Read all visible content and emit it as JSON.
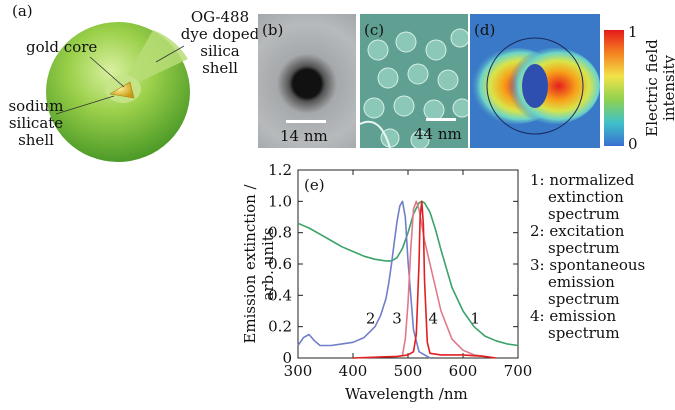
{
  "panel_a": {
    "tag": "(a)",
    "gold_core": "gold core",
    "shell_label": [
      "OG-488",
      "dye doped",
      "silica",
      "shell"
    ],
    "sodium_label": [
      "sodium",
      "silicate",
      "shell"
    ],
    "colors": {
      "shell": "#8cc63f",
      "core": "#e0c020"
    }
  },
  "panel_b": {
    "tag": "(b)",
    "scale": "14 nm"
  },
  "panel_c": {
    "tag": "(c)",
    "scale": "44 nm"
  },
  "panel_d": {
    "tag": "(d)"
  },
  "colorbar": {
    "max": "1",
    "min": "0",
    "label": [
      "Electric field",
      "intensity"
    ]
  },
  "legend": [
    {
      "lines": [
        "1: normalized",
        "extinction",
        "spectrum"
      ]
    },
    {
      "lines": [
        "2: excitation",
        "spectrum"
      ]
    },
    {
      "lines": [
        "3: spontaneous",
        "emission",
        "spectrum"
      ]
    },
    {
      "lines": [
        "4: emission",
        "spectrum"
      ]
    }
  ],
  "chart_data": {
    "type": "line",
    "panel_tag": "(e)",
    "xlabel": "Wavelength /nm",
    "ylabel": [
      "Emission extinction /",
      "arb. units"
    ],
    "xlim": [
      300,
      700
    ],
    "ylim": [
      0,
      1.2
    ],
    "xticks": [
      300,
      400,
      500,
      600,
      700
    ],
    "yticks": [
      0,
      0.2,
      0.4,
      0.6,
      0.8,
      1.0,
      1.2
    ],
    "ytick_labels": [
      "0",
      "0.2",
      "0.4",
      "0.6",
      "0.8",
      "1.0",
      "1.2"
    ],
    "series": [
      {
        "id": "1",
        "color": "#3aa36a",
        "x": [
          300,
          320,
          340,
          360,
          380,
          400,
          420,
          440,
          460,
          470,
          480,
          490,
          500,
          510,
          520,
          525,
          530,
          540,
          550,
          560,
          580,
          600,
          620,
          640,
          660,
          680,
          700
        ],
        "y": [
          0.86,
          0.83,
          0.79,
          0.75,
          0.71,
          0.68,
          0.65,
          0.63,
          0.62,
          0.62,
          0.64,
          0.7,
          0.8,
          0.92,
          0.99,
          1.0,
          0.99,
          0.93,
          0.82,
          0.69,
          0.45,
          0.3,
          0.2,
          0.14,
          0.11,
          0.09,
          0.08
        ]
      },
      {
        "id": "2",
        "color": "#7080c8",
        "x": [
          300,
          310,
          320,
          330,
          340,
          350,
          360,
          380,
          400,
          420,
          440,
          450,
          460,
          465,
          470,
          475,
          480,
          485,
          490,
          495,
          500,
          510,
          520,
          540
        ],
        "y": [
          0.08,
          0.13,
          0.15,
          0.11,
          0.08,
          0.08,
          0.08,
          0.09,
          0.1,
          0.13,
          0.2,
          0.27,
          0.38,
          0.48,
          0.6,
          0.74,
          0.87,
          0.97,
          1.0,
          0.9,
          0.62,
          0.18,
          0.04,
          0.0
        ]
      },
      {
        "id": "3",
        "color": "#e07a8a",
        "x": [
          490,
          495,
          500,
          505,
          510,
          515,
          520,
          525,
          530,
          540,
          550,
          560,
          580,
          600,
          620,
          640
        ],
        "y": [
          0.02,
          0.12,
          0.35,
          0.7,
          0.95,
          1.0,
          0.95,
          0.85,
          0.75,
          0.6,
          0.45,
          0.3,
          0.12,
          0.05,
          0.02,
          0.01
        ]
      },
      {
        "id": "4",
        "color": "#e02020",
        "x": [
          400,
          480,
          500,
          510,
          515,
          520,
          522,
          525,
          528,
          530,
          535,
          540,
          560,
          600,
          640,
          660
        ],
        "y": [
          0.0,
          0.01,
          0.02,
          0.04,
          0.15,
          0.6,
          0.9,
          1.0,
          0.85,
          0.5,
          0.1,
          0.03,
          0.02,
          0.02,
          0.01,
          0.0
        ]
      }
    ],
    "curve_labels": [
      {
        "text": "2",
        "x": 432,
        "y": 0.22
      },
      {
        "text": "3",
        "x": 480,
        "y": 0.22
      },
      {
        "text": "4",
        "x": 546,
        "y": 0.22
      },
      {
        "text": "1",
        "x": 622,
        "y": 0.22
      }
    ]
  }
}
